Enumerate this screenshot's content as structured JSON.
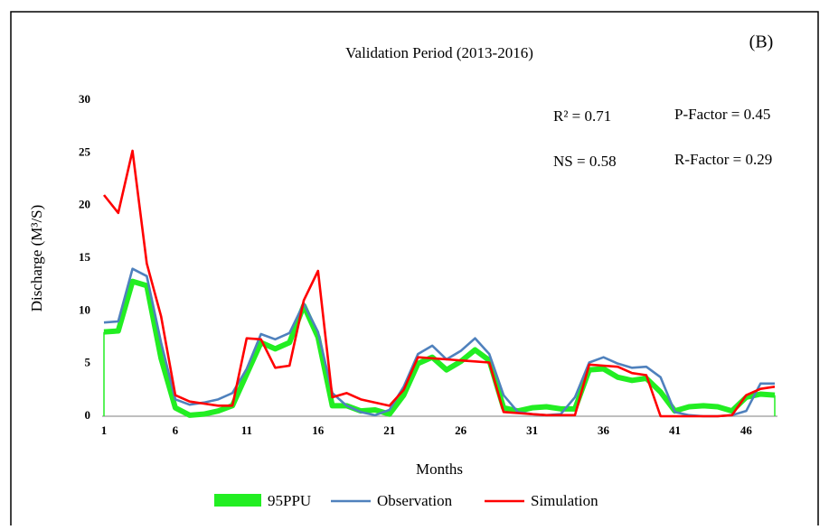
{
  "chart_data": {
    "type": "line",
    "title": "Validation Period (2013-2016)",
    "panel_label": "(B)",
    "x_label": "Months",
    "y_label": "Discharge (M³/S)",
    "annotations": [
      "R² = 0.71",
      "P-Factor = 0.45",
      "NS = 0.58",
      "R-Factor = 0.29"
    ],
    "x": [
      1,
      2,
      3,
      4,
      5,
      6,
      7,
      8,
      9,
      10,
      11,
      12,
      13,
      14,
      15,
      16,
      17,
      18,
      19,
      20,
      21,
      22,
      23,
      24,
      25,
      26,
      27,
      28,
      29,
      30,
      31,
      32,
      33,
      34,
      35,
      36,
      37,
      38,
      39,
      40,
      41,
      42,
      43,
      44,
      45,
      46,
      47,
      48
    ],
    "xlim": [
      1,
      48
    ],
    "xticks": [
      1,
      6,
      11,
      16,
      21,
      26,
      31,
      36,
      41,
      46
    ],
    "ylim": [
      0,
      30
    ],
    "yticks": [
      0,
      5,
      10,
      15,
      20,
      25,
      30
    ],
    "series": [
      {
        "name": "95PPU",
        "color": "#22ee22",
        "values": [
          8.0,
          8.1,
          12.8,
          12.4,
          5.5,
          0.8,
          0.1,
          0.2,
          0.5,
          1.0,
          4.0,
          7.0,
          6.4,
          7.0,
          10.5,
          7.5,
          1.0,
          1.0,
          0.5,
          0.6,
          0.2,
          2.0,
          5.0,
          5.6,
          4.4,
          5.2,
          6.3,
          5.3,
          0.8,
          0.5,
          0.8,
          0.9,
          0.7,
          0.7,
          4.4,
          4.5,
          3.7,
          3.4,
          3.6,
          2.3,
          0.5,
          0.9,
          1.0,
          0.9,
          0.5,
          1.8,
          2.1,
          2.0
        ]
      },
      {
        "name": "Observation",
        "color": "#4f81bd",
        "values": [
          8.9,
          9.0,
          14.0,
          13.3,
          7.0,
          1.6,
          1.1,
          1.3,
          1.6,
          2.2,
          4.5,
          7.8,
          7.3,
          7.9,
          10.7,
          8.0,
          2.2,
          1.0,
          0.4,
          0.1,
          0.6,
          2.8,
          5.9,
          6.7,
          5.4,
          6.2,
          7.4,
          5.9,
          2.0,
          0.4,
          0.2,
          0.1,
          0.2,
          1.8,
          5.1,
          5.6,
          5.0,
          4.6,
          4.7,
          3.7,
          0.4,
          0.1,
          0,
          0,
          0.1,
          0.5,
          3.1,
          3.1
        ]
      },
      {
        "name": "Simulation",
        "color": "#ff0000",
        "values": [
          21,
          19.3,
          25.2,
          14.5,
          9.5,
          2.0,
          1.4,
          1.2,
          1.0,
          1.0,
          7.4,
          7.3,
          4.6,
          4.8,
          11,
          13.8,
          1.8,
          2.2,
          1.6,
          1.3,
          1.0,
          2.5,
          5.6,
          5.5,
          5.4,
          5.3,
          5.2,
          5.1,
          0.4,
          0.3,
          0.2,
          0.1,
          0.1,
          0.1,
          4.9,
          4.8,
          4.7,
          4.1,
          3.9,
          0,
          0,
          0,
          0,
          0,
          0.1,
          2.0,
          2.6,
          2.8
        ]
      }
    ]
  }
}
